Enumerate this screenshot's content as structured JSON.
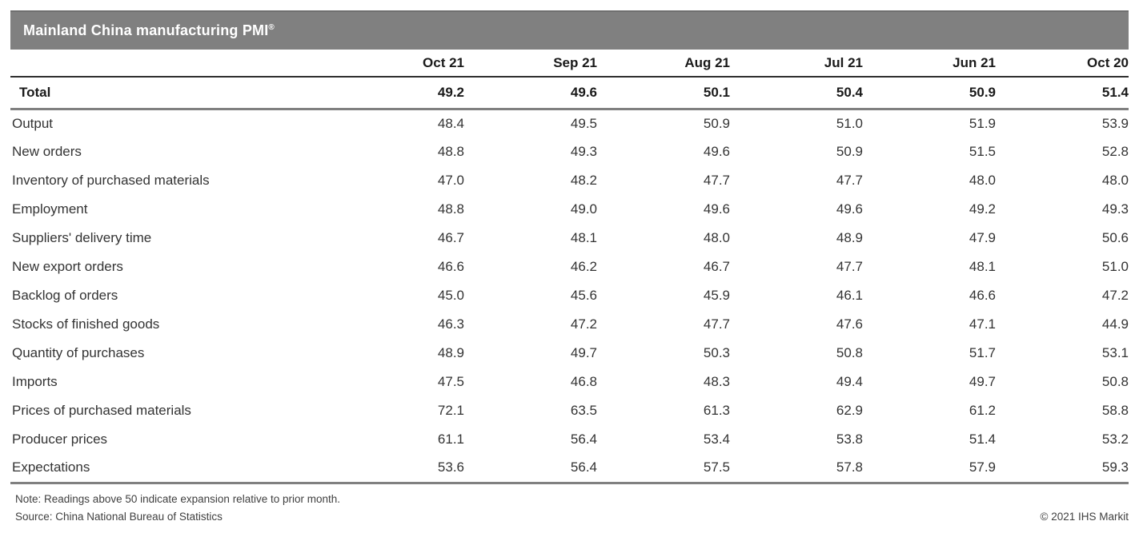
{
  "title_bar": {
    "title": "Mainland China manufacturing PMI",
    "registered_mark": "®"
  },
  "chart_data": {
    "type": "table",
    "title": "Mainland China manufacturing PMI",
    "columns": [
      "Oct 21",
      "Sep 21",
      "Aug 21",
      "Jul 21",
      "Jun 21",
      "Oct 20"
    ],
    "total_row": {
      "label": "Total",
      "values": [
        49.2,
        49.6,
        50.1,
        50.4,
        50.9,
        51.4
      ]
    },
    "rows": [
      {
        "label": "Output",
        "values": [
          48.4,
          49.5,
          50.9,
          51.0,
          51.9,
          53.9
        ]
      },
      {
        "label": "New orders",
        "values": [
          48.8,
          49.3,
          49.6,
          50.9,
          51.5,
          52.8
        ]
      },
      {
        "label": "Inventory of purchased materials",
        "values": [
          47.0,
          48.2,
          47.7,
          47.7,
          48.0,
          48.0
        ]
      },
      {
        "label": "Employment",
        "values": [
          48.8,
          49.0,
          49.6,
          49.6,
          49.2,
          49.3
        ]
      },
      {
        "label": "Suppliers' delivery time",
        "values": [
          46.7,
          48.1,
          48.0,
          48.9,
          47.9,
          50.6
        ]
      },
      {
        "label": "New export orders",
        "values": [
          46.6,
          46.2,
          46.7,
          47.7,
          48.1,
          51.0
        ]
      },
      {
        "label": "Backlog of orders",
        "values": [
          45.0,
          45.6,
          45.9,
          46.1,
          46.6,
          47.2
        ]
      },
      {
        "label": "Stocks of finished goods",
        "values": [
          46.3,
          47.2,
          47.7,
          47.6,
          47.1,
          44.9
        ]
      },
      {
        "label": "Quantity of purchases",
        "values": [
          48.9,
          49.7,
          50.3,
          50.8,
          51.7,
          53.1
        ]
      },
      {
        "label": "Imports",
        "values": [
          47.5,
          46.8,
          48.3,
          49.4,
          49.7,
          50.8
        ]
      },
      {
        "label": "Prices of purchased materials",
        "values": [
          72.1,
          63.5,
          61.3,
          62.9,
          61.2,
          58.8
        ]
      },
      {
        "label": "Producer prices",
        "values": [
          61.1,
          56.4,
          53.4,
          53.8,
          51.4,
          53.2
        ]
      },
      {
        "label": "Expectations",
        "values": [
          53.6,
          56.4,
          57.5,
          57.8,
          57.9,
          59.3
        ]
      }
    ],
    "layout": {
      "value_precision": 1,
      "numeric_columns_right_aligned": true,
      "grid": "off"
    }
  },
  "footer": {
    "note": "Note: Readings above 50 indicate expansion relative to prior month.",
    "source": "Source: China National Bureau of Statistics",
    "copyright": "© 2021 IHS Markit"
  },
  "colors": {
    "header_bar": "#808080",
    "title_text": "#ffffff",
    "heading_text": "#1a1a1a",
    "body_text": "#333333",
    "footer_text": "#3f3f3f",
    "divider_dark": "#2e2e2e",
    "divider_gray": "#808080"
  }
}
